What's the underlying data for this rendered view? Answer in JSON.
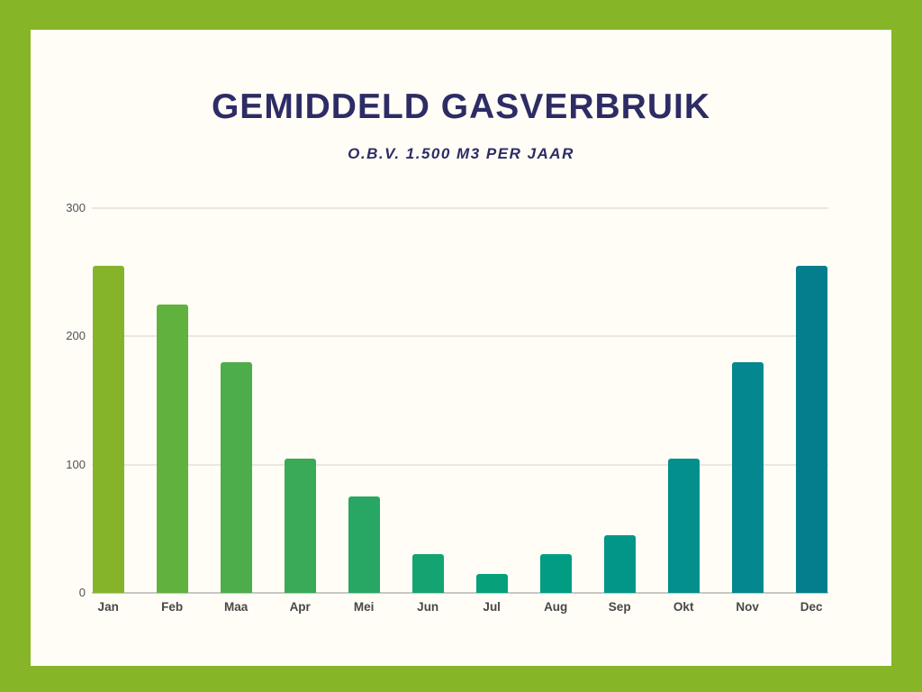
{
  "page": {
    "border_color": "#86b527",
    "card_bg": "#fffdf6"
  },
  "header": {
    "title": "GEMIDDELD GASVERBRUIK",
    "subtitle": "O.B.V. 1.500 M3 PER JAAR",
    "title_color": "#2d2c64"
  },
  "chart_data": {
    "type": "bar",
    "title": "GEMIDDELD GASVERBRUIK",
    "subtitle": "O.B.V. 1.500 M3 PER JAAR",
    "categories": [
      "Jan",
      "Feb",
      "Maa",
      "Apr",
      "Mei",
      "Jun",
      "Jul",
      "Aug",
      "Sep",
      "Okt",
      "Nov",
      "Dec"
    ],
    "values": [
      255,
      225,
      180,
      105,
      75,
      30,
      15,
      30,
      45,
      105,
      180,
      255
    ],
    "bar_colors": [
      "#85b42b",
      "#60b13e",
      "#4cad4a",
      "#39aa55",
      "#27a763",
      "#13a471",
      "#06a07b",
      "#029c82",
      "#029688",
      "#038f8c",
      "#04878f",
      "#047d8c"
    ],
    "xlabel": "",
    "ylabel": "",
    "ylim": [
      0,
      300
    ],
    "yticks": [
      0,
      100,
      200,
      300
    ],
    "ytick_labels": [
      "0",
      "100",
      "200",
      "300"
    ],
    "grid": true,
    "legend": false,
    "grid_color": "#eae7e1",
    "axis_line_color": "#c9c7c3",
    "tick_label_color": "#525252"
  }
}
